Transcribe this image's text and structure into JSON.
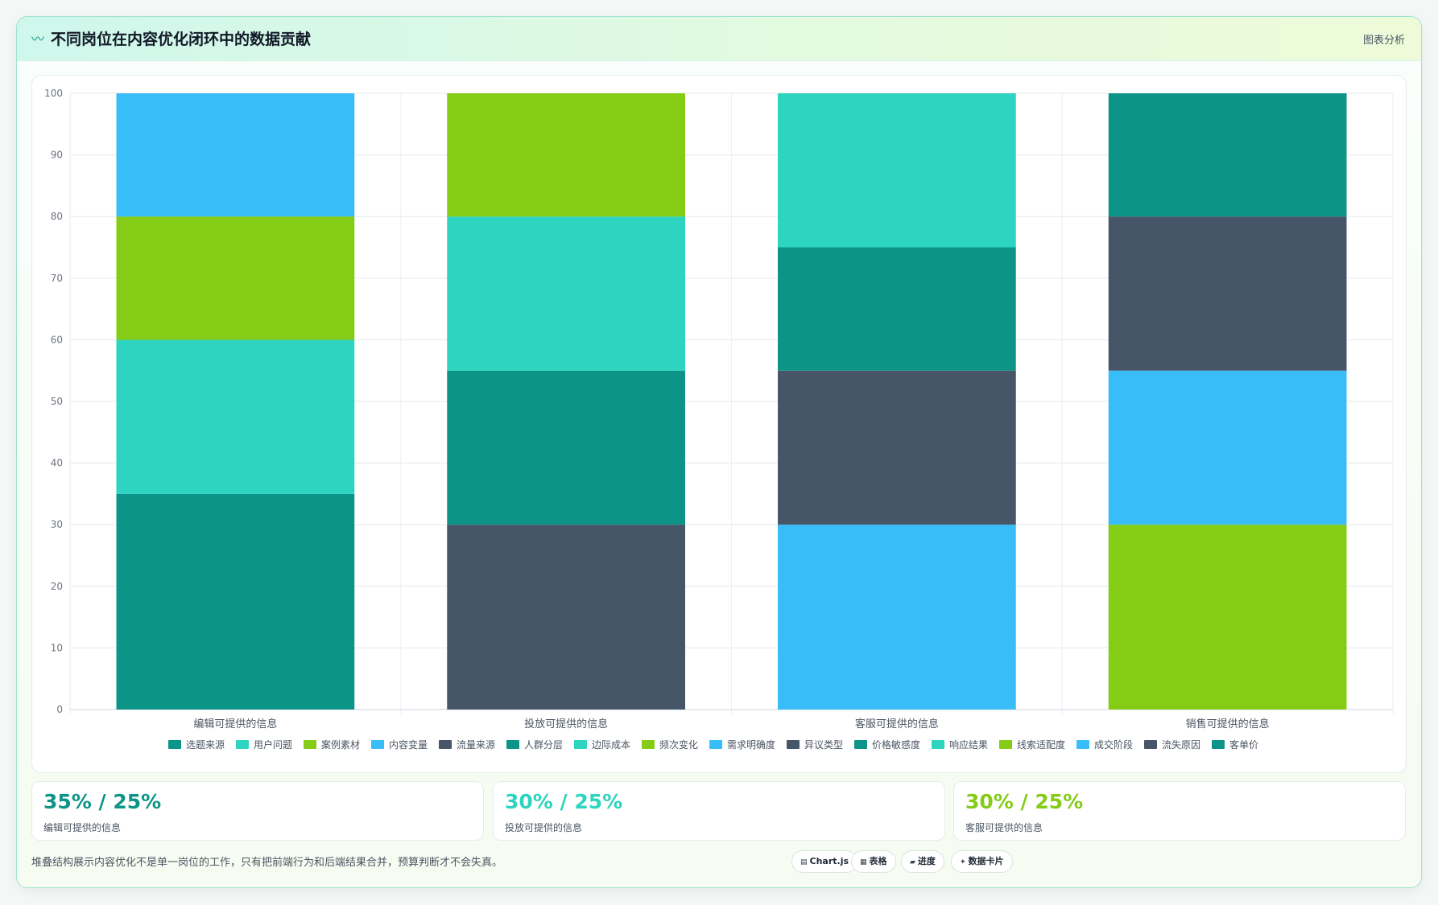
{
  "header": {
    "title": "不同岗位在内容优化闭环中的数据贡献",
    "action_label": "图表分析",
    "logo_icon": "wave-icon"
  },
  "chart_data": {
    "type": "bar",
    "stacked": true,
    "categories": [
      "编辑可提供的信息",
      "投放可提供的信息",
      "客服可提供的信息",
      "销售可提供的信息"
    ],
    "ylim": [
      0,
      100
    ],
    "yticks": [
      0,
      10,
      20,
      30,
      40,
      50,
      60,
      70,
      80,
      90,
      100
    ],
    "grid": true,
    "legend_position": "bottom",
    "series": [
      {
        "name": "选题来源",
        "color": "#0d9488",
        "values": [
          35,
          0,
          0,
          0
        ]
      },
      {
        "name": "用户问题",
        "color": "#2dd4bf",
        "values": [
          25,
          0,
          0,
          0
        ]
      },
      {
        "name": "案例素材",
        "color": "#84cc16",
        "values": [
          20,
          0,
          0,
          0
        ]
      },
      {
        "name": "内容变量",
        "color": "#38bdf8",
        "values": [
          20,
          0,
          0,
          0
        ]
      },
      {
        "name": "流量来源",
        "color": "#475569",
        "values": [
          0,
          30,
          0,
          0
        ]
      },
      {
        "name": "人群分层",
        "color": "#0d9488",
        "values": [
          0,
          25,
          0,
          0
        ]
      },
      {
        "name": "边际成本",
        "color": "#2dd4bf",
        "values": [
          0,
          25,
          0,
          0
        ]
      },
      {
        "name": "频次变化",
        "color": "#84cc16",
        "values": [
          0,
          20,
          0,
          0
        ]
      },
      {
        "name": "需求明确度",
        "color": "#38bdf8",
        "values": [
          0,
          0,
          30,
          0
        ]
      },
      {
        "name": "异议类型",
        "color": "#475569",
        "values": [
          0,
          0,
          25,
          0
        ]
      },
      {
        "name": "价格敏感度",
        "color": "#0d9488",
        "values": [
          0,
          0,
          20,
          0
        ]
      },
      {
        "name": "响应结果",
        "color": "#2dd4bf",
        "values": [
          0,
          0,
          25,
          0
        ]
      },
      {
        "name": "线索适配度",
        "color": "#84cc16",
        "values": [
          0,
          0,
          0,
          30
        ]
      },
      {
        "name": "成交阶段",
        "color": "#38bdf8",
        "values": [
          0,
          0,
          0,
          25
        ]
      },
      {
        "name": "流失原因",
        "color": "#475569",
        "values": [
          0,
          0,
          0,
          25
        ]
      },
      {
        "name": "客单价",
        "color": "#0d9488",
        "values": [
          0,
          0,
          0,
          20
        ]
      }
    ]
  },
  "stats": [
    {
      "value": "35% / 25%",
      "label": "编辑可提供的信息",
      "color": "#0d9488"
    },
    {
      "value": "30% / 25%",
      "label": "投放可提供的信息",
      "color": "#2dd4bf"
    },
    {
      "value": "30% / 25%",
      "label": "客服可提供的信息",
      "color": "#84cc16"
    }
  ],
  "footer": {
    "note": "堆叠结构展示内容优化不是单一岗位的工作，只有把前端行为和后端结果合并，预算判断才不会失真。",
    "pills": [
      {
        "icon": "chart-icon",
        "glyph": "▤",
        "label": "Chart.js"
      },
      {
        "icon": "table-icon",
        "glyph": "▦",
        "label": "表格"
      },
      {
        "icon": "progress-icon",
        "glyph": "▰",
        "label": "进度"
      },
      {
        "icon": "sparkle-icon",
        "glyph": "✦",
        "label": "数据卡片"
      }
    ]
  }
}
